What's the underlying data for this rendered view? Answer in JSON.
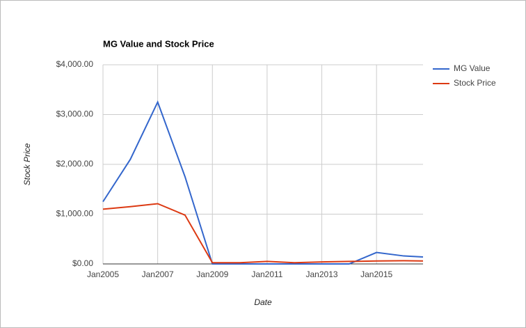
{
  "chart_data": {
    "type": "line",
    "title": "MG Value and Stock Price",
    "x_label": "Date",
    "y_label": "Stock Price",
    "x": [
      2005,
      2006,
      2007,
      2008,
      2009,
      2010,
      2011,
      2012,
      2013,
      2014,
      2015,
      2016,
      2016.7
    ],
    "series": [
      {
        "name": "MG Value",
        "color": "#3366cc",
        "values": [
          1250,
          2100,
          3250,
          1750,
          0,
          0,
          0,
          0,
          0,
          0,
          230,
          160,
          140
        ]
      },
      {
        "name": "Stock Price",
        "color": "#dc3912",
        "values": [
          1100,
          1150,
          1210,
          980,
          25,
          25,
          50,
          25,
          40,
          50,
          60,
          65,
          60
        ]
      }
    ],
    "xlim": [
      2005,
      2016.7
    ],
    "xticks": [
      {
        "value": 2005,
        "label": "Jan2005"
      },
      {
        "value": 2007,
        "label": "Jan2007"
      },
      {
        "value": 2009,
        "label": "Jan2009"
      },
      {
        "value": 2011,
        "label": "Jan2011"
      },
      {
        "value": 2013,
        "label": "Jan2013"
      },
      {
        "value": 2015,
        "label": "Jan2015"
      }
    ],
    "ylim": [
      0,
      4000
    ],
    "yticks": [
      {
        "value": 0,
        "label": "$0.00"
      },
      {
        "value": 1000,
        "label": "$1,000.00"
      },
      {
        "value": 2000,
        "label": "$2,000.00"
      },
      {
        "value": 3000,
        "label": "$3,000.00"
      },
      {
        "value": 4000,
        "label": "$4,000.00"
      }
    ],
    "grid": true,
    "legend": "right"
  }
}
